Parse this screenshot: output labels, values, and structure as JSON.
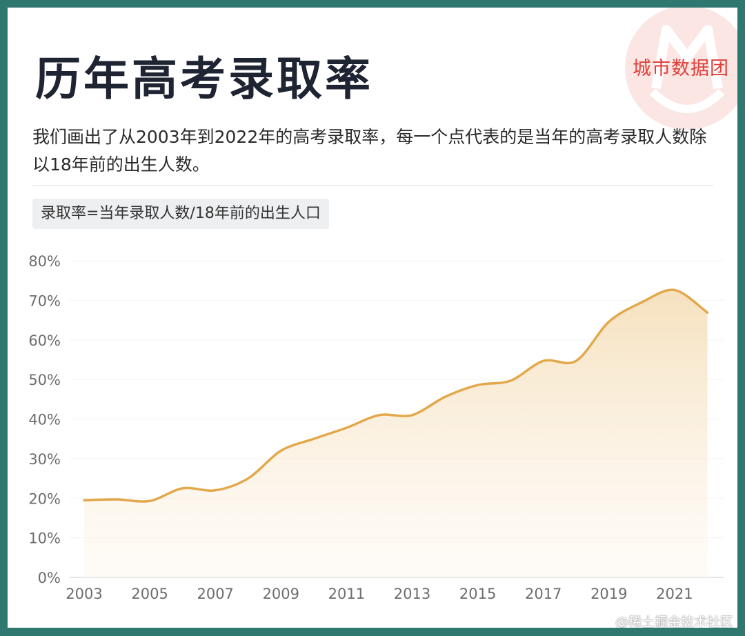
{
  "header": {
    "title": "历年高考录取率",
    "brand": "城市数据团",
    "description": "我们画出了从2003年到2022年的高考录取率，每一个点代表的是当年的高考录取人数除以18年前的出生人数。",
    "formula": "录取率=当年录取人数/18年前的出生人口"
  },
  "watermark": "@稀土掘金技术社区",
  "colors": {
    "frame": "#2f7870",
    "line": "#e3a84c",
    "fill": "#f7e3c3",
    "title": "#1f2433",
    "brand": "#e0403a"
  },
  "axis": {
    "y_ticks": [
      "0%",
      "10%",
      "20%",
      "30%",
      "40%",
      "50%",
      "60%",
      "70%",
      "80%"
    ],
    "x_ticks": [
      "2003",
      "2005",
      "2007",
      "2009",
      "2011",
      "2013",
      "2015",
      "2017",
      "2019",
      "2021"
    ]
  },
  "chart_data": {
    "type": "area",
    "title": "历年高考录取率",
    "subtitle": "录取率=当年录取人数/18年前的出生人口",
    "xlabel": "",
    "ylabel": "",
    "ylim": [
      0,
      80
    ],
    "y_unit": "%",
    "grid": true,
    "legend": null,
    "x": [
      2003,
      2004,
      2005,
      2006,
      2007,
      2008,
      2009,
      2010,
      2011,
      2012,
      2013,
      2014,
      2015,
      2016,
      2017,
      2018,
      2019,
      2020,
      2021,
      2022
    ],
    "series": [
      {
        "name": "录取率",
        "values": [
          19.5,
          19.7,
          19.3,
          22.5,
          22.0,
          25.0,
          32.0,
          35.0,
          37.8,
          41.0,
          41.0,
          45.6,
          48.6,
          49.7,
          54.7,
          54.7,
          64.6,
          69.5,
          72.6,
          66.9
        ]
      }
    ],
    "x_tick_labels": [
      "2003",
      "2005",
      "2007",
      "2009",
      "2011",
      "2013",
      "2015",
      "2017",
      "2019",
      "2021"
    ],
    "y_tick_labels": [
      "0%",
      "10%",
      "20%",
      "30%",
      "40%",
      "50%",
      "60%",
      "70%",
      "80%"
    ]
  }
}
